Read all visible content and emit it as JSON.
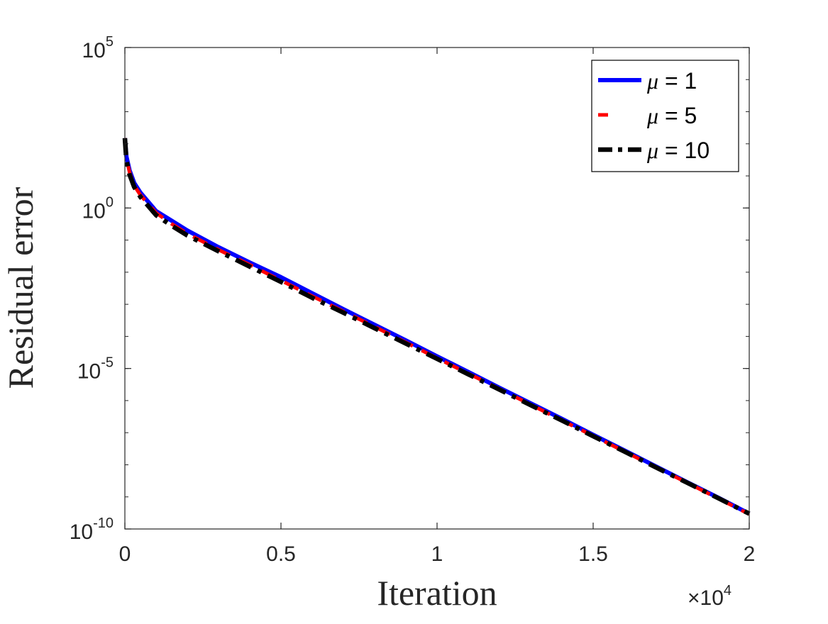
{
  "chart_data": {
    "type": "line",
    "title": "",
    "xlabel": "Iteration",
    "ylabel": "Residual error",
    "x_multiplier": {
      "base": "×10",
      "exponent": "4"
    },
    "x_scale": "linear",
    "y_scale": "log",
    "xlim": [
      0,
      20000
    ],
    "ylim": [
      1e-10,
      100000.0
    ],
    "x_ticks": [
      {
        "value": 0,
        "label": "0"
      },
      {
        "value": 5000,
        "label": "0.5"
      },
      {
        "value": 10000,
        "label": "1"
      },
      {
        "value": 15000,
        "label": "1.5"
      },
      {
        "value": 20000,
        "label": "2"
      }
    ],
    "y_ticks": [
      {
        "value": 100000.0,
        "base": "10",
        "exponent": "5"
      },
      {
        "value": 1,
        "base": "10",
        "exponent": "0"
      },
      {
        "value": 1e-05,
        "base": "10",
        "exponent": "-5"
      },
      {
        "value": 1e-10,
        "base": "10",
        "exponent": "-10"
      }
    ],
    "grid": false,
    "legend_position": "top-right",
    "series": [
      {
        "name_symbol": "μ",
        "name_value": " = 1",
        "color": "#0000ff",
        "style": "solid",
        "x": [
          0,
          50,
          150,
          300,
          500,
          1000,
          1500,
          2000,
          3000,
          4000,
          5000,
          6000,
          7000,
          8000,
          9000,
          10000,
          11000,
          12000,
          13000,
          14000,
          15000,
          16000,
          17000,
          18000,
          19000,
          20000
        ],
        "y": [
          150,
          40,
          15,
          6,
          3,
          0.8,
          0.4,
          0.2,
          0.06,
          0.02,
          0.007,
          0.0022,
          0.0007,
          0.00023,
          7.5e-05,
          2.4e-05,
          7.8e-06,
          2.5e-06,
          8.2e-07,
          2.7e-07,
          8.6e-08,
          2.8e-08,
          9e-09,
          2.9e-09,
          9.5e-10,
          3e-10
        ]
      },
      {
        "name_symbol": "μ",
        "name_value": " = 5",
        "color": "#ff0000",
        "style": "dashed",
        "x": [
          0,
          50,
          150,
          300,
          500,
          1000,
          1500,
          2000,
          3000,
          4000,
          5000,
          6000,
          7000,
          8000,
          9000,
          10000,
          11000,
          12000,
          13000,
          14000,
          15000,
          16000,
          17000,
          18000,
          19000,
          20000
        ],
        "y": [
          150,
          35,
          13,
          5,
          2.5,
          0.7,
          0.32,
          0.16,
          0.05,
          0.017,
          0.0055,
          0.0018,
          0.0006,
          0.0002,
          6.5e-05,
          2.1e-05,
          7e-06,
          2.3e-06,
          7.5e-07,
          2.4e-07,
          8e-08,
          2.6e-08,
          8.5e-09,
          2.8e-09,
          9e-10,
          2.9e-10
        ]
      },
      {
        "name_symbol": "μ",
        "name_value": " = 10",
        "color": "#000000",
        "style": "dashdot",
        "x": [
          0,
          50,
          150,
          300,
          500,
          1000,
          1500,
          2000,
          3000,
          4000,
          5000,
          6000,
          7000,
          8000,
          9000,
          10000,
          11000,
          12000,
          13000,
          14000,
          15000,
          16000,
          17000,
          18000,
          19000,
          20000
        ],
        "y": [
          150,
          30,
          11,
          4.5,
          2.2,
          0.6,
          0.28,
          0.14,
          0.045,
          0.015,
          0.005,
          0.0016,
          0.00055,
          0.00018,
          6e-05,
          2e-05,
          6.6e-06,
          2.2e-06,
          7.2e-07,
          2.4e-07,
          7.8e-08,
          2.6e-08,
          8.4e-09,
          2.8e-09,
          9.2e-10,
          3e-10
        ]
      }
    ]
  }
}
